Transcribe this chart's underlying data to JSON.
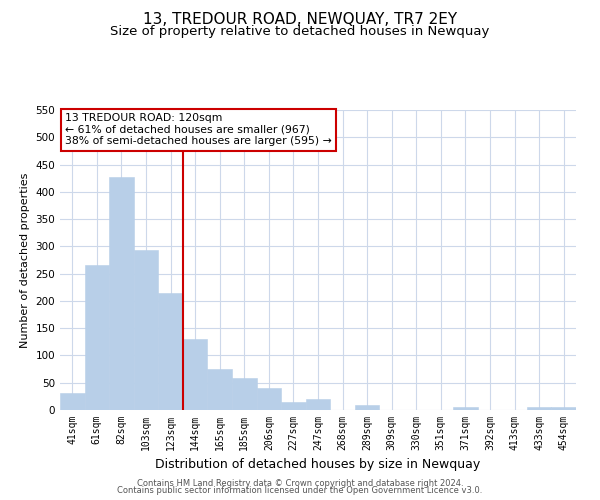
{
  "title": "13, TREDOUR ROAD, NEWQUAY, TR7 2EY",
  "subtitle": "Size of property relative to detached houses in Newquay",
  "xlabel": "Distribution of detached houses by size in Newquay",
  "ylabel": "Number of detached properties",
  "bar_labels": [
    "41sqm",
    "61sqm",
    "82sqm",
    "103sqm",
    "123sqm",
    "144sqm",
    "165sqm",
    "185sqm",
    "206sqm",
    "227sqm",
    "247sqm",
    "268sqm",
    "289sqm",
    "309sqm",
    "330sqm",
    "351sqm",
    "371sqm",
    "392sqm",
    "413sqm",
    "433sqm",
    "454sqm"
  ],
  "bar_values": [
    31,
    265,
    428,
    293,
    215,
    130,
    76,
    59,
    40,
    15,
    20,
    0,
    10,
    0,
    0,
    0,
    5,
    0,
    0,
    5,
    5
  ],
  "bar_color": "#b8cfe8",
  "bar_edge_color": "#b8cfe8",
  "vline_x": 4.5,
  "vline_color": "#cc0000",
  "annotation_title": "13 TREDOUR ROAD: 120sqm",
  "annotation_line1": "← 61% of detached houses are smaller (967)",
  "annotation_line2": "38% of semi-detached houses are larger (595) →",
  "annotation_box_color": "#ffffff",
  "annotation_box_edge": "#cc0000",
  "ylim": [
    0,
    550
  ],
  "yticks": [
    0,
    50,
    100,
    150,
    200,
    250,
    300,
    350,
    400,
    450,
    500,
    550
  ],
  "footer1": "Contains HM Land Registry data © Crown copyright and database right 2024.",
  "footer2": "Contains public sector information licensed under the Open Government Licence v3.0.",
  "background_color": "#ffffff",
  "grid_color": "#cdd8ea",
  "title_fontsize": 11,
  "subtitle_fontsize": 9.5,
  "xlabel_fontsize": 9,
  "ylabel_fontsize": 8,
  "tick_fontsize": 7,
  "ytick_fontsize": 7.5,
  "ann_fontsize": 7.8,
  "footer_fontsize": 6
}
